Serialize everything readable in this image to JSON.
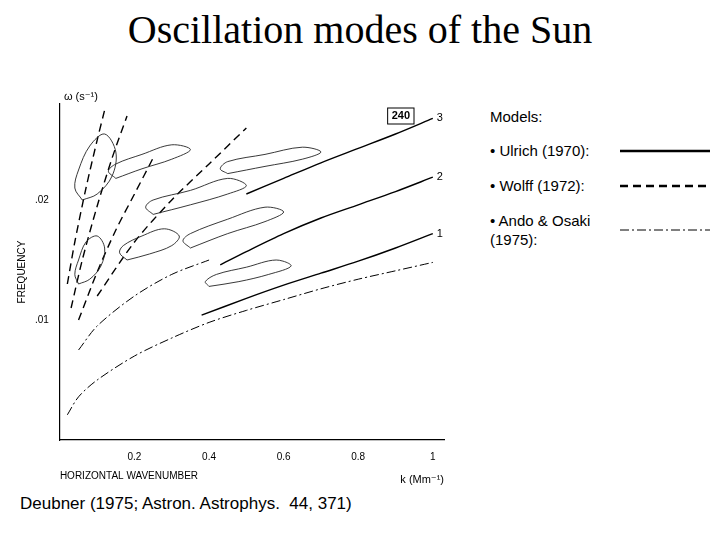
{
  "title": "Oscillation modes of the Sun",
  "caption": "Deubner (1975; Astron. Astrophys.  44, 371)",
  "chart_data": {
    "type": "line",
    "x_label": "HORIZONTAL WAVENUMBER",
    "y_label": "FREQUENCY",
    "x_unit_label": "k (Mm⁻¹)",
    "y_unit_label": "ω (s⁻¹)",
    "panel_label": "240",
    "legend_title": "Models:",
    "xlim": [
      0,
      1.03
    ],
    "xticks": [
      0.2,
      0.4,
      0.6,
      0.8,
      1
    ],
    "ylim": [
      0,
      0.028
    ],
    "yticks": [
      {
        "value": 0.01,
        "label": ".01"
      },
      {
        "value": 0.02,
        "label": ".02"
      }
    ],
    "grid": false,
    "series": [
      {
        "name": "• Ulrich (1970):",
        "color": "#000000",
        "line_style": "solid",
        "curves": [
          {
            "label": "1",
            "x": [
              0.38,
              0.5,
              0.6,
              0.7,
              0.8,
              0.9,
              1.0
            ],
            "y": [
              0.0104,
              0.0118,
              0.0129,
              0.0139,
              0.0149,
              0.016,
              0.0172
            ]
          },
          {
            "label": "2",
            "x": [
              0.43,
              0.5,
              0.6,
              0.7,
              0.8,
              0.9,
              1.0
            ],
            "y": [
              0.0146,
              0.0157,
              0.0172,
              0.0185,
              0.0196,
              0.0207,
              0.0219
            ]
          },
          {
            "label": "3",
            "x": [
              0.5,
              0.6,
              0.7,
              0.8,
              0.9,
              1.0
            ],
            "y": [
              0.0205,
              0.0218,
              0.0231,
              0.0243,
              0.0255,
              0.0268
            ]
          }
        ]
      },
      {
        "name": "• Wolff (1972):",
        "color": "#000000",
        "line_style": "dashed",
        "curves": [
          {
            "x": [
              0.05,
              0.1,
              0.15,
              0.2,
              0.25
            ],
            "y": [
              0.01,
              0.014,
              0.0175,
              0.0205,
              0.0235
            ]
          },
          {
            "x": [
              0.03,
              0.06,
              0.1,
              0.14,
              0.18
            ],
            "y": [
              0.011,
              0.015,
              0.0195,
              0.0235,
              0.027
            ]
          },
          {
            "x": [
              0.02,
              0.04,
              0.07,
              0.1,
              0.12
            ],
            "y": [
              0.013,
              0.0165,
              0.021,
              0.025,
              0.0275
            ]
          },
          {
            "x": [
              0.1,
              0.2,
              0.3,
              0.4,
              0.5
            ],
            "y": [
              0.012,
              0.0165,
              0.02,
              0.023,
              0.026
            ]
          }
        ]
      },
      {
        "name": "• Ando & Osaki (1975):",
        "color": "#000000",
        "line_style": "dashdot",
        "curves": [
          {
            "x": [
              0.02,
              0.05,
              0.1,
              0.2,
              0.3,
              0.4,
              0.5,
              0.6,
              0.7,
              0.8,
              0.9,
              1.0
            ],
            "y": [
              0.0021,
              0.0036,
              0.005,
              0.007,
              0.0085,
              0.0098,
              0.0108,
              0.0117,
              0.0126,
              0.0134,
              0.0141,
              0.0148
            ]
          },
          {
            "x": [
              0.05,
              0.1,
              0.2,
              0.3,
              0.4
            ],
            "y": [
              0.0075,
              0.0095,
              0.012,
              0.0138,
              0.015
            ]
          }
        ]
      }
    ],
    "contours": {
      "color": "#222222",
      "loops": [
        {
          "x": [
            0.35,
            0.45,
            0.55,
            0.6,
            0.55,
            0.45,
            0.35,
            0.33,
            0.35
          ],
          "y": [
            0.016,
            0.0172,
            0.0182,
            0.019,
            0.0194,
            0.0184,
            0.0172,
            0.0166,
            0.016
          ]
        },
        {
          "x": [
            0.25,
            0.35,
            0.45,
            0.5,
            0.45,
            0.35,
            0.25,
            0.23,
            0.25
          ],
          "y": [
            0.0188,
            0.0196,
            0.0205,
            0.0212,
            0.0218,
            0.0208,
            0.02,
            0.0194,
            0.0188
          ]
        },
        {
          "x": [
            0.15,
            0.22,
            0.3,
            0.35,
            0.3,
            0.22,
            0.15,
            0.13,
            0.15
          ],
          "y": [
            0.0218,
            0.0226,
            0.0234,
            0.0242,
            0.0246,
            0.0238,
            0.023,
            0.0224,
            0.0218
          ]
        },
        {
          "x": [
            0.06,
            0.1,
            0.14,
            0.15,
            0.12,
            0.08,
            0.05,
            0.04,
            0.06
          ],
          "y": [
            0.02,
            0.0205,
            0.022,
            0.024,
            0.0255,
            0.0245,
            0.0225,
            0.021,
            0.02
          ]
        },
        {
          "x": [
            0.4,
            0.48,
            0.56,
            0.62,
            0.58,
            0.5,
            0.42,
            0.39,
            0.4
          ],
          "y": [
            0.0128,
            0.0132,
            0.0138,
            0.0145,
            0.015,
            0.0144,
            0.0138,
            0.0132,
            0.0128
          ]
        },
        {
          "x": [
            0.18,
            0.24,
            0.3,
            0.32,
            0.28,
            0.22,
            0.17,
            0.16,
            0.18
          ],
          "y": [
            0.015,
            0.0155,
            0.0162,
            0.017,
            0.0176,
            0.017,
            0.0162,
            0.0156,
            0.015
          ]
        },
        {
          "x": [
            0.05,
            0.08,
            0.11,
            0.12,
            0.1,
            0.07,
            0.05,
            0.04,
            0.05
          ],
          "y": [
            0.013,
            0.0134,
            0.0145,
            0.016,
            0.017,
            0.0165,
            0.015,
            0.0138,
            0.013
          ]
        },
        {
          "x": [
            0.45,
            0.55,
            0.65,
            0.7,
            0.65,
            0.55,
            0.45,
            0.43,
            0.45
          ],
          "y": [
            0.0222,
            0.0228,
            0.0234,
            0.024,
            0.0244,
            0.0238,
            0.0232,
            0.0226,
            0.0222
          ]
        }
      ]
    }
  }
}
